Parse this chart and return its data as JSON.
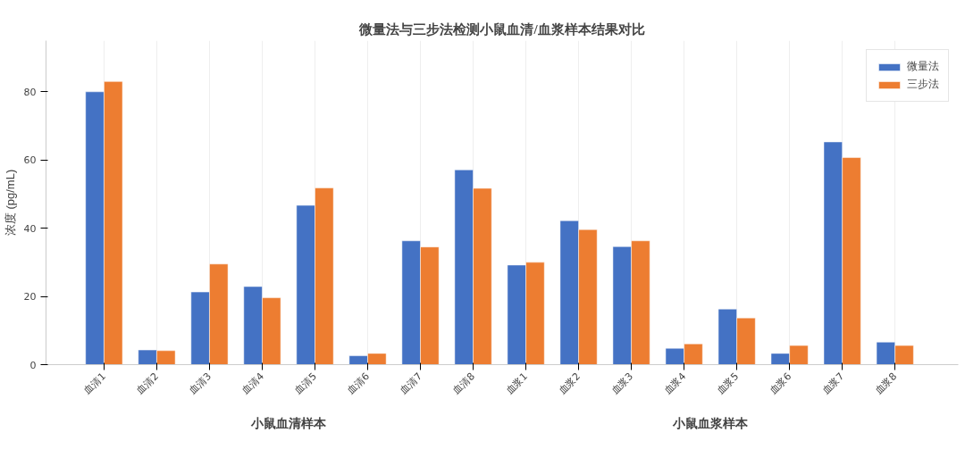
{
  "chart_data": {
    "type": "bar",
    "title": "微量法与三步法检测小鼠血清/血浆样本结果对比",
    "ylabel": "浓度 (pg/mL)",
    "categories": [
      "血清1",
      "血清2",
      "血清3",
      "血清4",
      "血清5",
      "血清6",
      "血清7",
      "血清8",
      "血浆1",
      "血浆2",
      "血浆3",
      "血浆4",
      "血浆5",
      "血浆6",
      "血浆7",
      "血浆8"
    ],
    "series": [
      {
        "name": "微量法",
        "color": "#4472c4",
        "values": [
          80,
          4.3,
          21.3,
          22.9,
          46.7,
          2.6,
          36.3,
          57.1,
          29.2,
          42.2,
          34.6,
          4.8,
          16.3,
          3.3,
          65.3,
          6.6
        ]
      },
      {
        "name": "三步法",
        "color": "#ed7d31",
        "values": [
          83,
          4.1,
          29.5,
          19.6,
          51.8,
          3.3,
          34.5,
          51.7,
          30,
          39.6,
          36.3,
          6.1,
          13.7,
          5.6,
          60.7,
          5.6
        ]
      }
    ],
    "ylim": [
      0,
      95
    ],
    "yticks": [
      0,
      20,
      40,
      60,
      80
    ],
    "annotations": [
      "小鼠血清样本",
      "小鼠血浆样本"
    ],
    "grid": "x",
    "legend": "top right"
  }
}
